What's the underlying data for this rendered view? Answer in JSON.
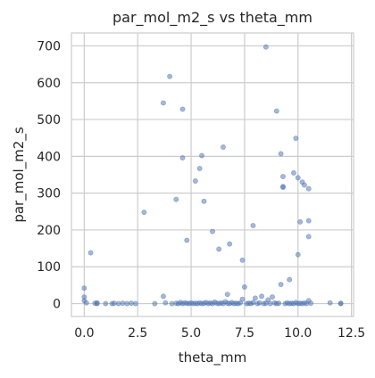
{
  "chart_data": {
    "type": "scatter",
    "title": "par_mol_m2_s vs theta_mm",
    "xlabel": "theta_mm",
    "ylabel": "par_mol_m2_s",
    "xlim": [
      -0.6,
      12.6
    ],
    "ylim": [
      -35,
      735
    ],
    "x_ticks": [
      0.0,
      2.5,
      5.0,
      7.5,
      10.0,
      12.5
    ],
    "x_tick_labels": [
      "0.0",
      "2.5",
      "5.0",
      "7.5",
      "10.0",
      "12.5"
    ],
    "y_ticks": [
      0,
      100,
      200,
      300,
      400,
      500,
      600,
      700
    ],
    "y_tick_labels": [
      "0",
      "100",
      "200",
      "300",
      "400",
      "500",
      "600",
      "700"
    ],
    "grid": true,
    "marker_color": "#4c72b0",
    "background": "#ffffff",
    "grid_color": "#cccccc",
    "points": [
      {
        "x": 8.5,
        "y": 697
      },
      {
        "x": 4.0,
        "y": 617
      },
      {
        "x": 3.7,
        "y": 545
      },
      {
        "x": 4.6,
        "y": 528
      },
      {
        "x": 9.0,
        "y": 523
      },
      {
        "x": 9.9,
        "y": 449
      },
      {
        "x": 6.5,
        "y": 425
      },
      {
        "x": 5.5,
        "y": 402
      },
      {
        "x": 9.2,
        "y": 407
      },
      {
        "x": 4.6,
        "y": 396
      },
      {
        "x": 5.4,
        "y": 367
      },
      {
        "x": 9.8,
        "y": 355
      },
      {
        "x": 9.3,
        "y": 345
      },
      {
        "x": 10.0,
        "y": 342
      },
      {
        "x": 5.2,
        "y": 333
      },
      {
        "x": 10.2,
        "y": 330
      },
      {
        "x": 10.3,
        "y": 322
      },
      {
        "x": 9.3,
        "y": 318
      },
      {
        "x": 9.3,
        "y": 316
      },
      {
        "x": 10.5,
        "y": 312
      },
      {
        "x": 4.3,
        "y": 283
      },
      {
        "x": 5.6,
        "y": 278
      },
      {
        "x": 2.8,
        "y": 248
      },
      {
        "x": 10.5,
        "y": 225
      },
      {
        "x": 10.1,
        "y": 222
      },
      {
        "x": 7.9,
        "y": 212
      },
      {
        "x": 6.0,
        "y": 196
      },
      {
        "x": 10.5,
        "y": 182
      },
      {
        "x": 4.8,
        "y": 172
      },
      {
        "x": 6.8,
        "y": 162
      },
      {
        "x": 6.3,
        "y": 148
      },
      {
        "x": 0.3,
        "y": 138
      },
      {
        "x": 10.0,
        "y": 133
      },
      {
        "x": 7.4,
        "y": 118
      },
      {
        "x": 9.6,
        "y": 65
      },
      {
        "x": 9.2,
        "y": 52
      },
      {
        "x": 7.5,
        "y": 45
      },
      {
        "x": 0.0,
        "y": 42
      },
      {
        "x": 6.7,
        "y": 25
      },
      {
        "x": 3.7,
        "y": 20
      },
      {
        "x": 0.0,
        "y": 18
      },
      {
        "x": 8.3,
        "y": 20
      },
      {
        "x": 8.0,
        "y": 15
      },
      {
        "x": 8.8,
        "y": 18
      },
      {
        "x": 7.4,
        "y": 12
      },
      {
        "x": 0.0,
        "y": 8
      },
      {
        "x": 10.5,
        "y": 8
      },
      {
        "x": 8.6,
        "y": 10
      },
      {
        "x": 0.1,
        "y": 2
      },
      {
        "x": 0.5,
        "y": 1
      },
      {
        "x": 0.6,
        "y": 0
      },
      {
        "x": 0.6,
        "y": 2
      },
      {
        "x": 1.0,
        "y": 0
      },
      {
        "x": 1.3,
        "y": 0
      },
      {
        "x": 1.4,
        "y": 1
      },
      {
        "x": 1.6,
        "y": 0
      },
      {
        "x": 1.8,
        "y": 1
      },
      {
        "x": 2.0,
        "y": 0
      },
      {
        "x": 2.2,
        "y": 1
      },
      {
        "x": 2.4,
        "y": 0
      },
      {
        "x": 3.3,
        "y": 0
      },
      {
        "x": 3.8,
        "y": 2
      },
      {
        "x": 4.1,
        "y": 0
      },
      {
        "x": 4.3,
        "y": 1
      },
      {
        "x": 4.4,
        "y": 0
      },
      {
        "x": 4.5,
        "y": 3
      },
      {
        "x": 4.6,
        "y": 0
      },
      {
        "x": 4.7,
        "y": 2
      },
      {
        "x": 4.8,
        "y": 1
      },
      {
        "x": 4.9,
        "y": 0
      },
      {
        "x": 5.0,
        "y": 2
      },
      {
        "x": 5.1,
        "y": 0
      },
      {
        "x": 5.2,
        "y": 1
      },
      {
        "x": 5.3,
        "y": 0
      },
      {
        "x": 5.4,
        "y": 2
      },
      {
        "x": 5.5,
        "y": 0
      },
      {
        "x": 5.6,
        "y": 1
      },
      {
        "x": 5.7,
        "y": 3
      },
      {
        "x": 5.8,
        "y": 0
      },
      {
        "x": 5.9,
        "y": 2
      },
      {
        "x": 6.0,
        "y": 0
      },
      {
        "x": 6.1,
        "y": 4
      },
      {
        "x": 6.2,
        "y": 1
      },
      {
        "x": 6.3,
        "y": 0
      },
      {
        "x": 6.4,
        "y": 2
      },
      {
        "x": 6.5,
        "y": 0
      },
      {
        "x": 6.6,
        "y": 5
      },
      {
        "x": 6.7,
        "y": 1
      },
      {
        "x": 6.8,
        "y": 0
      },
      {
        "x": 6.9,
        "y": 3
      },
      {
        "x": 7.0,
        "y": 0
      },
      {
        "x": 7.1,
        "y": 1
      },
      {
        "x": 7.2,
        "y": 0
      },
      {
        "x": 7.3,
        "y": 2
      },
      {
        "x": 7.6,
        "y": 0
      },
      {
        "x": 7.7,
        "y": 1
      },
      {
        "x": 7.8,
        "y": 0
      },
      {
        "x": 7.9,
        "y": 3
      },
      {
        "x": 8.1,
        "y": 0
      },
      {
        "x": 8.2,
        "y": 2
      },
      {
        "x": 8.4,
        "y": 0
      },
      {
        "x": 8.5,
        "y": 1
      },
      {
        "x": 8.7,
        "y": 0
      },
      {
        "x": 8.9,
        "y": 2
      },
      {
        "x": 9.0,
        "y": 0
      },
      {
        "x": 9.1,
        "y": 1
      },
      {
        "x": 9.4,
        "y": 0
      },
      {
        "x": 9.5,
        "y": 2
      },
      {
        "x": 9.6,
        "y": 0
      },
      {
        "x": 9.7,
        "y": 1
      },
      {
        "x": 9.8,
        "y": 0
      },
      {
        "x": 9.9,
        "y": 3
      },
      {
        "x": 10.0,
        "y": 0
      },
      {
        "x": 10.1,
        "y": 1
      },
      {
        "x": 10.2,
        "y": 0
      },
      {
        "x": 10.3,
        "y": 2
      },
      {
        "x": 10.4,
        "y": 0
      },
      {
        "x": 10.6,
        "y": 1
      },
      {
        "x": 11.5,
        "y": 2
      },
      {
        "x": 12.0,
        "y": 0
      },
      {
        "x": 12.0,
        "y": 1
      }
    ]
  }
}
